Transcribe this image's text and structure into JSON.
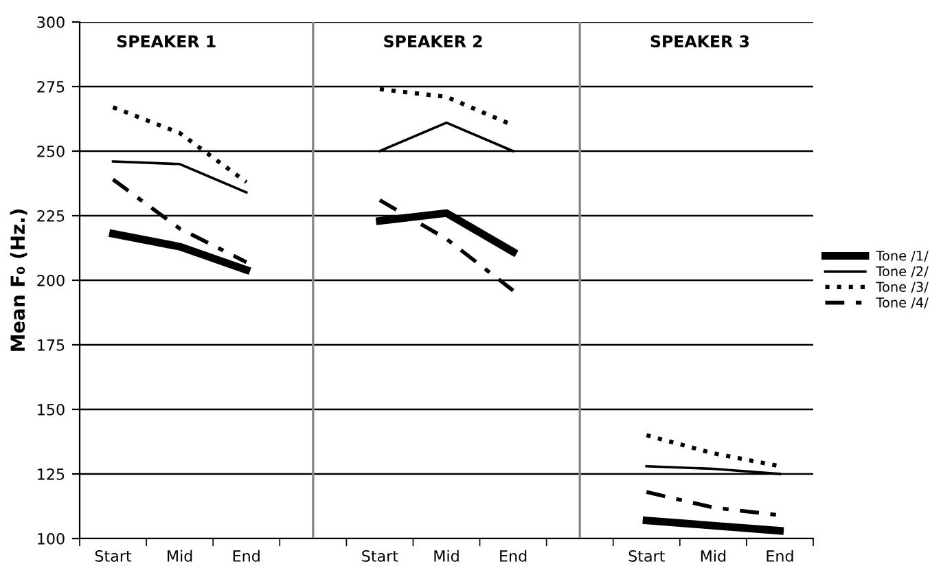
{
  "chart_data": {
    "type": "line",
    "ylabel": "Mean F₀ (Hz.)",
    "categories": [
      "Start",
      "Mid",
      "End",
      null,
      "Start",
      "Mid",
      "End",
      null,
      "Start",
      "Mid",
      "End"
    ],
    "ylim": [
      100,
      300
    ],
    "yticks": [
      100,
      125,
      150,
      175,
      200,
      225,
      250,
      275,
      300
    ],
    "grid": true,
    "legend": "right",
    "annotations": [
      "SPEAKER 1",
      "SPEAKER 2",
      "SPEAKER 3"
    ],
    "series": [
      {
        "name": "Tone /1/",
        "color": "#000000",
        "line_style": "solid",
        "values": [
          218,
          213,
          204,
          null,
          223,
          226,
          211,
          null,
          107,
          105,
          103
        ]
      },
      {
        "name": "Tone /2/",
        "color": "#000000",
        "line_style": "solid",
        "values": [
          246,
          245,
          234,
          null,
          250,
          261,
          250,
          null,
          128,
          127,
          125
        ]
      },
      {
        "name": "Tone /3/",
        "color": "#000000",
        "line_style": "dotted",
        "values": [
          267,
          257,
          238,
          null,
          274,
          271,
          260,
          null,
          140,
          133,
          128
        ]
      },
      {
        "name": "Tone /4/",
        "color": "#000000",
        "line_style": "dashed",
        "values": [
          239,
          220,
          207,
          null,
          231,
          216,
          196,
          null,
          118,
          112,
          109
        ]
      }
    ]
  }
}
